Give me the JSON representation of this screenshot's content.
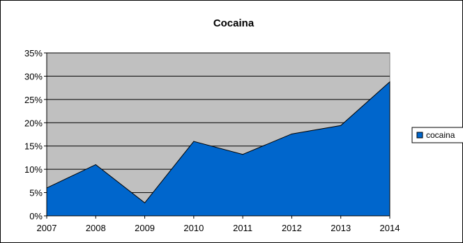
{
  "chart_data": {
    "type": "area",
    "title": "Cocaina",
    "x": [
      "2007",
      "2008",
      "2009",
      "2010",
      "2011",
      "2012",
      "2013",
      "2014"
    ],
    "series": [
      {
        "name": "cocaina",
        "values": [
          6.0,
          11.0,
          2.8,
          16.0,
          13.2,
          17.6,
          19.4,
          28.8
        ]
      }
    ],
    "ylim": [
      0,
      35
    ],
    "yticks": [
      "0%",
      "5%",
      "10%",
      "15%",
      "20%",
      "25%",
      "30%",
      "35%"
    ],
    "grid": true,
    "legend": "right",
    "colors": {
      "series": "#0066CC",
      "plot_bg": "#C0C0C0",
      "grid": "#000000"
    }
  }
}
